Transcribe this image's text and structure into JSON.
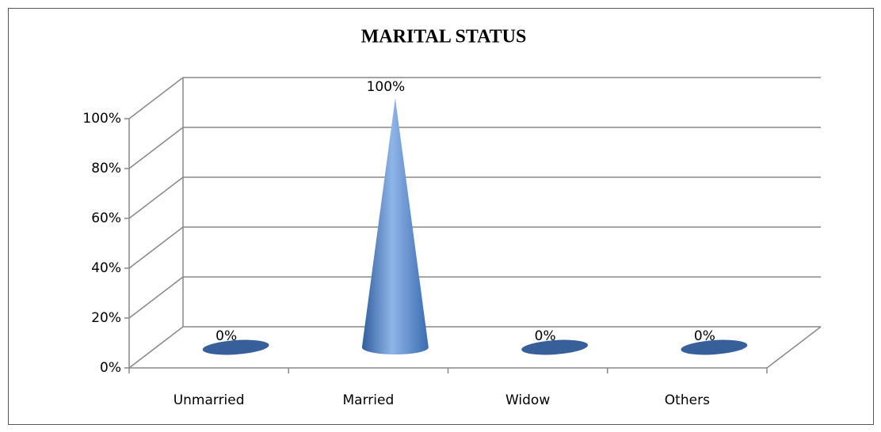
{
  "chart_data": {
    "type": "cone3d",
    "title": "MARITAL STATUS",
    "categories": [
      "Unmarried",
      "Married",
      "Widow",
      "Others"
    ],
    "values": [
      0,
      100,
      0,
      0
    ],
    "value_labels": [
      "0%",
      "100%",
      "0%",
      "0%"
    ],
    "color": "#4f81bd",
    "ylim": [
      0,
      100
    ],
    "yticks": [
      {
        "value": 0,
        "label": "0%"
      },
      {
        "value": 20,
        "label": "20%"
      },
      {
        "value": 40,
        "label": "40%"
      },
      {
        "value": 60,
        "label": "60%"
      },
      {
        "value": 80,
        "label": "80%"
      },
      {
        "value": 100,
        "label": "100%"
      }
    ],
    "grid": true
  }
}
